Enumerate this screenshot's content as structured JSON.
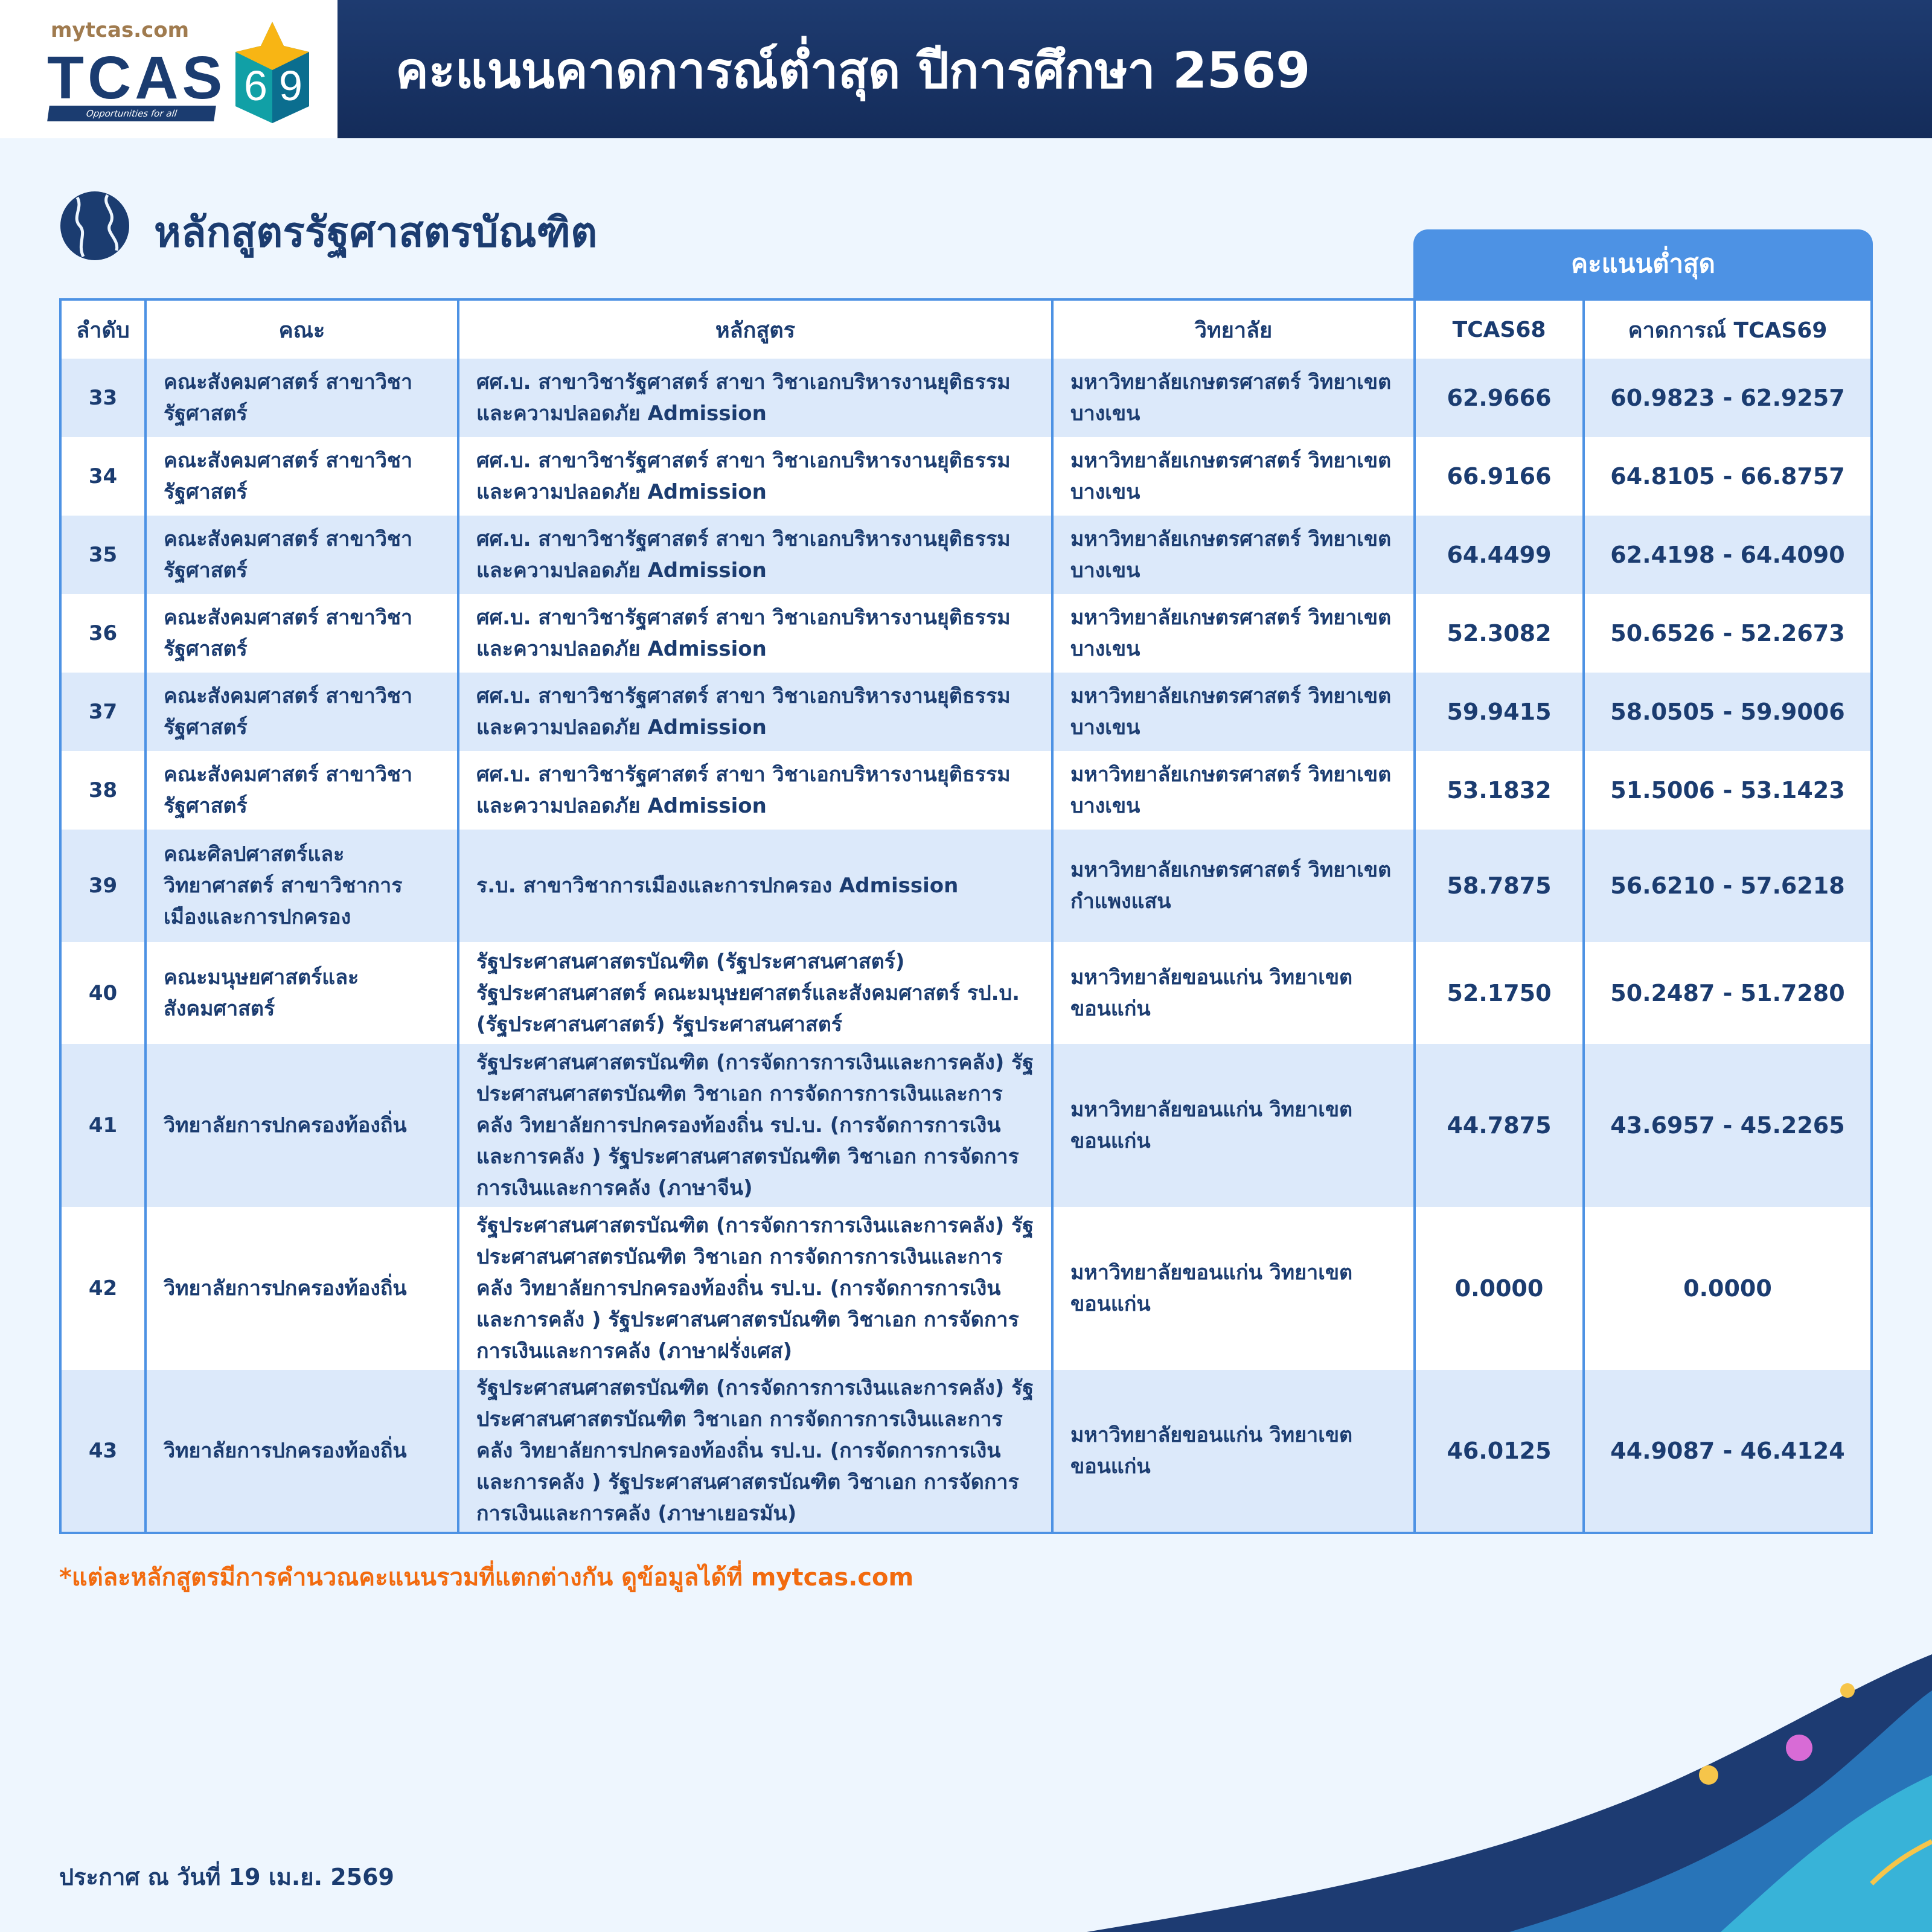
{
  "header": {
    "logo_site": "mytcas.com",
    "logo_brand": "TCAS",
    "logo_number": "69",
    "logo_tagline": "Opportunities for all",
    "title": "คะแนนคาดการณ์ต่ำสุด ปีการศึกษา 2569"
  },
  "section": {
    "title": "หลักสูตรรัฐศาสตรบัณฑิต",
    "icon": "globe-icon"
  },
  "table": {
    "group_header": "คะแนนต่ำสุด",
    "columns": [
      "ลำดับ",
      "คณะ",
      "หลักสูตร",
      "วิทยาลัย",
      "TCAS68",
      "คาดการณ์ TCAS69"
    ],
    "rows": [
      {
        "no": "33",
        "faculty": "คณะสังคมศาสตร์ สาขาวิชารัฐศาสตร์",
        "program": "ศศ.บ. สาขาวิชารัฐศาสตร์ สาขา วิชาเอกบริหารงานยุติธรรมและความปลอดภัย Admission",
        "campus": "มหาวิทยาลัยเกษตรศาสตร์ วิทยาเขตบางเขน",
        "tcas68": "62.9666",
        "tcas69": "60.9823 - 62.9257"
      },
      {
        "no": "34",
        "faculty": "คณะสังคมศาสตร์ สาขาวิชารัฐศาสตร์",
        "program": "ศศ.บ. สาขาวิชารัฐศาสตร์ สาขา วิชาเอกบริหารงานยุติธรรมและความปลอดภัย Admission",
        "campus": "มหาวิทยาลัยเกษตรศาสตร์ วิทยาเขตบางเขน",
        "tcas68": "66.9166",
        "tcas69": "64.8105 - 66.8757"
      },
      {
        "no": "35",
        "faculty": "คณะสังคมศาสตร์ สาขาวิชารัฐศาสตร์",
        "program": "ศศ.บ. สาขาวิชารัฐศาสตร์ สาขา วิชาเอกบริหารงานยุติธรรมและความปลอดภัย Admission",
        "campus": "มหาวิทยาลัยเกษตรศาสตร์ วิทยาเขตบางเขน",
        "tcas68": "64.4499",
        "tcas69": "62.4198 - 64.4090"
      },
      {
        "no": "36",
        "faculty": "คณะสังคมศาสตร์ สาขาวิชารัฐศาสตร์",
        "program": "ศศ.บ. สาขาวิชารัฐศาสตร์ สาขา วิชาเอกบริหารงานยุติธรรมและความปลอดภัย Admission",
        "campus": "มหาวิทยาลัยเกษตรศาสตร์ วิทยาเขตบางเขน",
        "tcas68": "52.3082",
        "tcas69": "50.6526 - 52.2673"
      },
      {
        "no": "37",
        "faculty": "คณะสังคมศาสตร์ สาขาวิชารัฐศาสตร์",
        "program": "ศศ.บ. สาขาวิชารัฐศาสตร์ สาขา วิชาเอกบริหารงานยุติธรรมและความปลอดภัย Admission",
        "campus": "มหาวิทยาลัยเกษตรศาสตร์ วิทยาเขตบางเขน",
        "tcas68": "59.9415",
        "tcas69": "58.0505 - 59.9006"
      },
      {
        "no": "38",
        "faculty": "คณะสังคมศาสตร์ สาขาวิชารัฐศาสตร์",
        "program": "ศศ.บ. สาขาวิชารัฐศาสตร์ สาขา วิชาเอกบริหารงานยุติธรรมและความปลอดภัย Admission",
        "campus": "มหาวิทยาลัยเกษตรศาสตร์ วิทยาเขตบางเขน",
        "tcas68": "53.1832",
        "tcas69": "51.5006 - 53.1423"
      },
      {
        "no": "39",
        "faculty": "คณะศิลปศาสตร์และวิทยาศาสตร์ สาขาวิชาการเมืองและการปกครอง",
        "program": "ร.บ. สาขาวิชาการเมืองและการปกครอง Admission",
        "campus": "มหาวิทยาลัยเกษตรศาสตร์ วิทยาเขตกำแพงแสน",
        "tcas68": "58.7875",
        "tcas69": "56.6210 - 57.6218"
      },
      {
        "no": "40",
        "faculty": "คณะมนุษยศาสตร์และสังคมศาสตร์",
        "program": "รัฐประศาสนศาสตรบัณฑิต (รัฐประศาสนศาสตร์) รัฐประศาสนศาสตร์ คณะมนุษยศาสตร์และสังคมศาสตร์ รป.บ. (รัฐประศาสนศาสตร์) รัฐประศาสนศาสตร์",
        "campus": "มหาวิทยาลัยขอนแก่น วิทยาเขตขอนแก่น",
        "tcas68": "52.1750",
        "tcas69": "50.2487 - 51.7280"
      },
      {
        "no": "41",
        "faculty": "วิทยาลัยการปกครองท้องถิ่น",
        "program": "รัฐประศาสนศาสตรบัณฑิต (การจัดการการเงินและการคลัง) รัฐประศาสนศาสตรบัณฑิต วิชาเอก การจัดการการเงินและการคลัง วิทยาลัยการปกครองท้องถิ่น รป.บ. (การจัดการการเงินและการคลัง ) รัฐประศาสนศาสตรบัณฑิต วิชาเอก การจัดการการเงินและการคลัง (ภาษาจีน)",
        "campus": "มหาวิทยาลัยขอนแก่น วิทยาเขตขอนแก่น",
        "tcas68": "44.7875",
        "tcas69": "43.6957 - 45.2265"
      },
      {
        "no": "42",
        "faculty": "วิทยาลัยการปกครองท้องถิ่น",
        "program": "รัฐประศาสนศาสตรบัณฑิต (การจัดการการเงินและการคลัง) รัฐประศาสนศาสตรบัณฑิต วิชาเอก การจัดการการเงินและการคลัง วิทยาลัยการปกครองท้องถิ่น รป.บ. (การจัดการการเงินและการคลัง ) รัฐประศาสนศาสตรบัณฑิต วิชาเอก การจัดการการเงินและการคลัง (ภาษาฝรั่งเศส)",
        "campus": "มหาวิทยาลัยขอนแก่น วิทยาเขตขอนแก่น",
        "tcas68": "0.0000",
        "tcas69": "0.0000"
      },
      {
        "no": "43",
        "faculty": "วิทยาลัยการปกครองท้องถิ่น",
        "program": "รัฐประศาสนศาสตรบัณฑิต (การจัดการการเงินและการคลัง) รัฐประศาสนศาสตรบัณฑิต วิชาเอก การจัดการการเงินและการคลัง วิทยาลัยการปกครองท้องถิ่น รป.บ. (การจัดการการเงินและการคลัง ) รัฐประศาสนศาสตรบัณฑิต วิชาเอก การจัดการการเงินและการคลัง (ภาษาเยอรมัน)",
        "campus": "มหาวิทยาลัยขอนแก่น วิทยาเขตขอนแก่น",
        "tcas68": "46.0125",
        "tcas69": "44.9087 - 46.4124"
      }
    ]
  },
  "footnote": "*แต่ละหลักสูตรมีการคำนวณคะแนนรวมที่แตกต่างกัน ดูข้อมูลได้ที่ mytcas.com",
  "announce_date": "ประกาศ ณ วันที่ 19 เม.ย. 2569",
  "colors": {
    "header_bg": "#1e3b70",
    "accent": "#4d92e4",
    "row_alt": "#dce9fa",
    "text": "#1b3c70",
    "note": "#f26b0f"
  }
}
